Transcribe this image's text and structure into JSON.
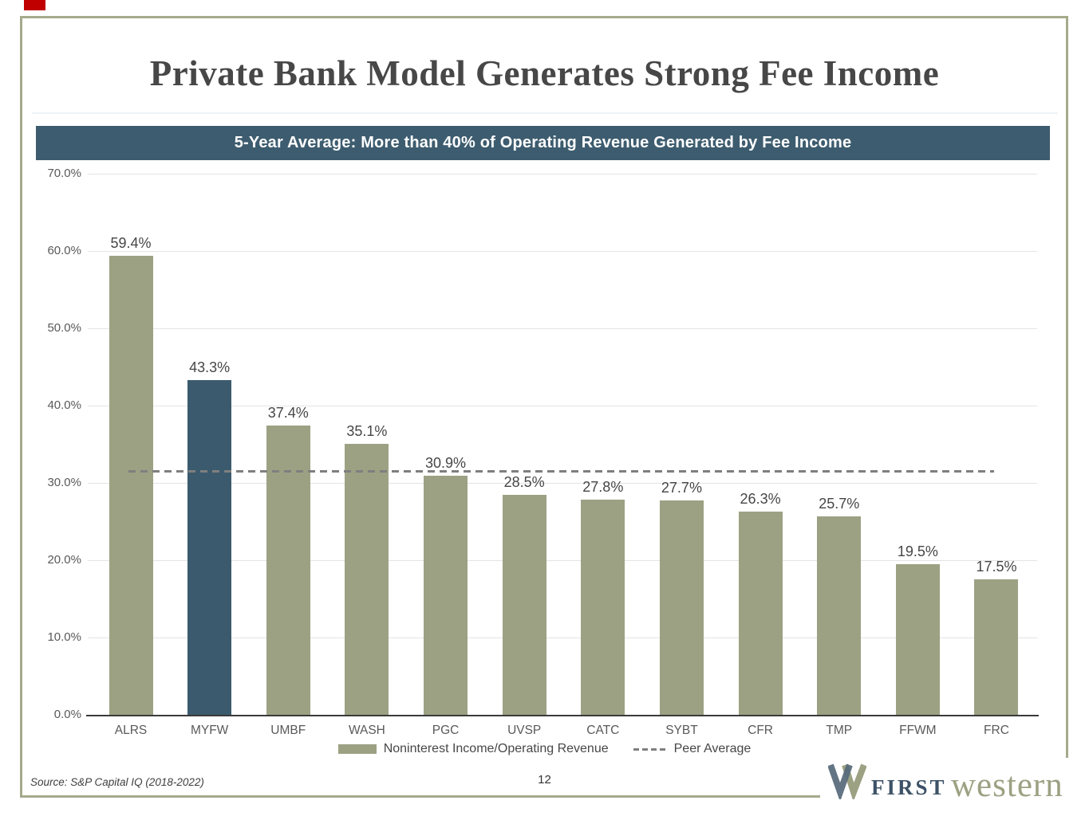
{
  "slide": {
    "title": "Private Bank Model Generates Strong Fee Income",
    "banner": "5-Year Average: More than 40% of Operating Revenue Generated by Fee Income",
    "source": "Source: S&P Capital IQ (2018-2022)",
    "page_number": "12",
    "logo": {
      "first": "FIRST",
      "western": "western",
      "mark_icon": "w-logo-icon"
    }
  },
  "colors": {
    "bar_default": "#9CA183",
    "bar_highlight": "#3B5A6E",
    "banner_bg": "#3D5C6F",
    "border": "#A5AA8C",
    "dashed_line": "#7F7F7F",
    "gridline": "#E4E4E4",
    "axis_text": "#595959",
    "red_marker": "#C00000",
    "logo_slate": "#3D5266",
    "logo_olive": "#9CA183"
  },
  "chart_data": {
    "type": "bar",
    "title": "5-Year Average: More than 40% of Operating Revenue Generated by Fee Income",
    "categories": [
      "ALRS",
      "MYFW",
      "UMBF",
      "WASH",
      "PGC",
      "UVSP",
      "CATC",
      "SYBT",
      "CFR",
      "TMP",
      "FFWM",
      "FRC"
    ],
    "series": [
      {
        "name": "Noninterest Income/Operating Revenue",
        "values": [
          59.4,
          43.3,
          37.4,
          35.1,
          30.9,
          28.5,
          27.8,
          27.7,
          26.3,
          25.7,
          19.5,
          17.5
        ]
      },
      {
        "name": "Peer Average",
        "type": "dashed-line",
        "value": 31.6
      }
    ],
    "data_labels": [
      "59.4%",
      "43.3%",
      "37.4%",
      "35.1%",
      "30.9%",
      "28.5%",
      "27.8%",
      "27.7%",
      "26.3%",
      "25.7%",
      "19.5%",
      "17.5%"
    ],
    "highlight_category": "MYFW",
    "ylim": [
      0,
      70
    ],
    "yticks": [
      "0.0%",
      "10.0%",
      "20.0%",
      "30.0%",
      "40.0%",
      "50.0%",
      "60.0%",
      "70.0%"
    ],
    "xlabel": "",
    "ylabel": "",
    "grid": "horizontal",
    "legend_position": "bottom",
    "legend": [
      "Noninterest Income/Operating Revenue",
      "Peer Average"
    ]
  }
}
